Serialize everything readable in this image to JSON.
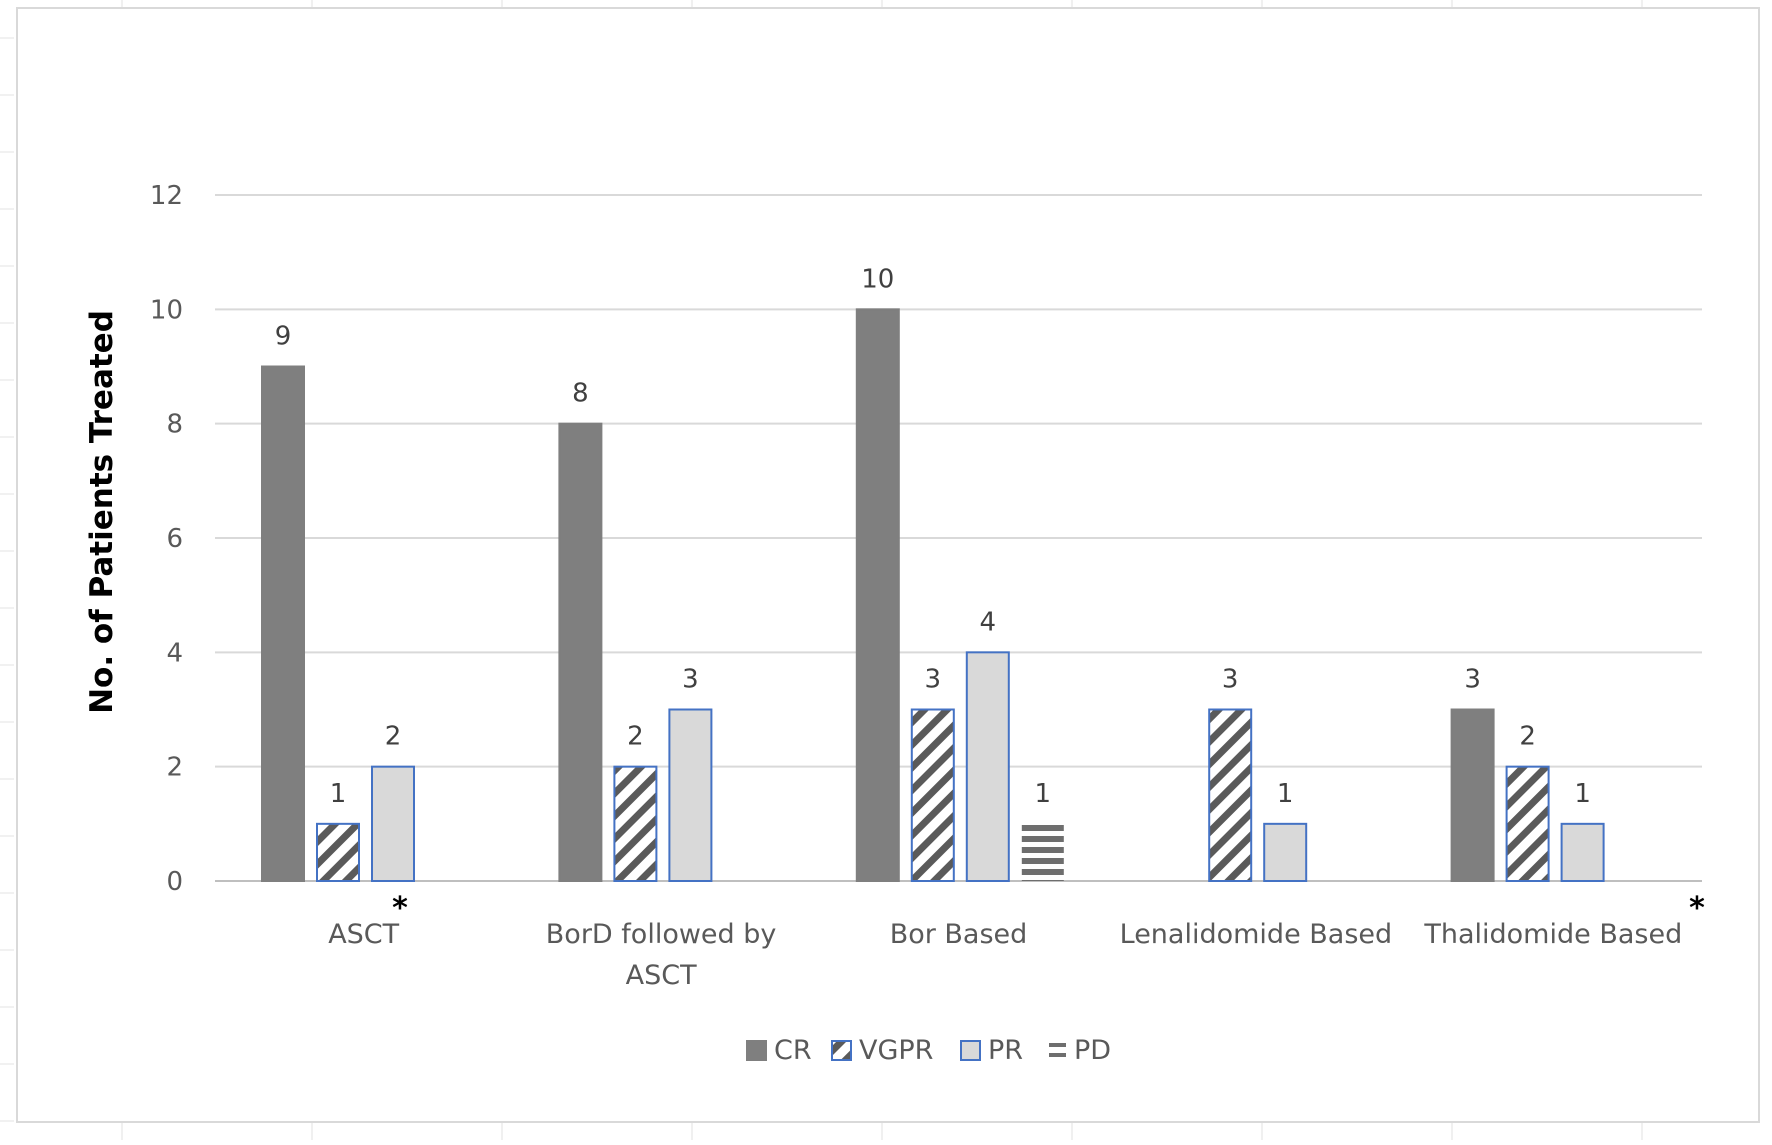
{
  "chart_data": {
    "type": "bar",
    "title": "",
    "xlabel": "",
    "ylabel": "No. of Patients Treated",
    "ylim": [
      0,
      12
    ],
    "yticks": [
      0,
      2,
      4,
      6,
      8,
      10,
      12
    ],
    "grid": true,
    "legend_position": "bottom",
    "categories": [
      [
        "ASCT"
      ],
      [
        "BorD followed by",
        "ASCT"
      ],
      [
        "Bor Based"
      ],
      [
        "Lenalidomide Based"
      ],
      [
        "Thalidomide Based"
      ]
    ],
    "category_markers": [
      "*",
      "",
      "",
      "",
      "*"
    ],
    "series": [
      {
        "name": "CR",
        "pattern": "solid",
        "fill": "#7f7f7f",
        "stroke": "#7f7f7f",
        "values": [
          9,
          8,
          10,
          null,
          3
        ]
      },
      {
        "name": "VGPR",
        "pattern": "diagonal-stripes",
        "fill": "#ffffff",
        "stroke": "#4472c4",
        "values": [
          1,
          2,
          3,
          3,
          2
        ]
      },
      {
        "name": "PR",
        "pattern": "solid",
        "fill": "#d9d9d9",
        "stroke": "#4472c4",
        "values": [
          2,
          3,
          4,
          1,
          1
        ]
      },
      {
        "name": "PD",
        "pattern": "horizontal-stripes",
        "fill": "#ffffff",
        "stroke": "none",
        "values": [
          null,
          null,
          1,
          null,
          null
        ]
      }
    ]
  }
}
